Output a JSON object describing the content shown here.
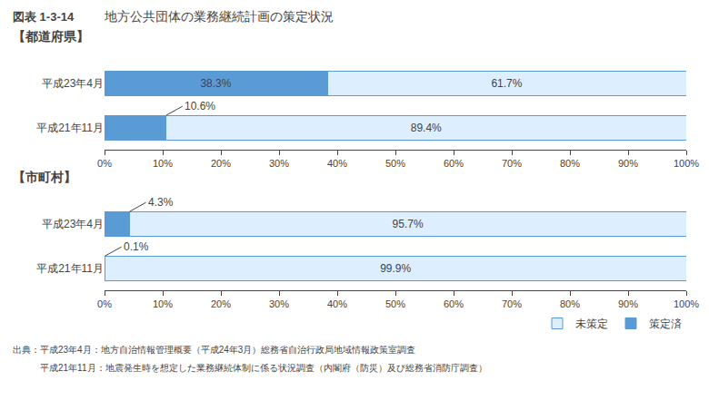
{
  "title": "地方公共団体の業務継続計画の策定状況",
  "subtitle": "図表 1-3-14",
  "annotations": [
    "出典：平成23年4月：地方自治情報管理概要（平成24年3月）総務省自治行政局地域情報政策室調査",
    "　　　平成21年11月：地震発生時を想定した業務継続体制に係る状況調査（内閣府（防災）及び総務省消防庁調査）"
  ],
  "chart_data": [
    {
      "type": "bar",
      "title": "【都道府県】",
      "orientation": "horizontal",
      "stacked": true,
      "categories": [
        "平成23年4月",
        "平成21年11月"
      ],
      "series": [
        {
          "name": "策定済",
          "color": "#5B9BD5",
          "values": [
            38.3,
            10.6
          ],
          "value_labels": [
            "38.3%",
            "10.6%"
          ]
        },
        {
          "name": "未策定",
          "color": "#DDEEFF",
          "values": [
            61.7,
            89.4
          ],
          "value_labels": [
            "61.7%",
            "89.4%"
          ]
        }
      ],
      "xlim": [
        0,
        100
      ],
      "xticks": [
        {
          "value": 0,
          "label": "0%"
        },
        {
          "value": 10,
          "label": "10%"
        },
        {
          "value": 20,
          "label": "20%"
        },
        {
          "value": 30,
          "label": "30%"
        },
        {
          "value": 40,
          "label": "40%"
        },
        {
          "value": 50,
          "label": "50%"
        },
        {
          "value": 60,
          "label": "60%"
        },
        {
          "value": 70,
          "label": "70%"
        },
        {
          "value": 80,
          "label": "80%"
        },
        {
          "value": 90,
          "label": "90%"
        },
        {
          "value": 100,
          "label": "100%"
        }
      ],
      "grid": false,
      "data_labels": true
    },
    {
      "type": "bar",
      "title": "【市町村】",
      "orientation": "horizontal",
      "stacked": true,
      "categories": [
        "平成23年4月",
        "平成21年11月"
      ],
      "series": [
        {
          "name": "策定済",
          "color": "#5B9BD5",
          "values": [
            4.3,
            0.1
          ],
          "value_labels": [
            "4.3%",
            "0.1%"
          ]
        },
        {
          "name": "未策定",
          "color": "#DDEEFF",
          "values": [
            95.7,
            99.9
          ],
          "value_labels": [
            "95.7%",
            "99.9%"
          ]
        }
      ],
      "xlim": [
        0,
        100
      ],
      "xticks": [
        {
          "value": 0,
          "label": "0%"
        },
        {
          "value": 10,
          "label": "10%"
        },
        {
          "value": 20,
          "label": "20%"
        },
        {
          "value": 30,
          "label": "30%"
        },
        {
          "value": 40,
          "label": "40%"
        },
        {
          "value": 50,
          "label": "50%"
        },
        {
          "value": 60,
          "label": "60%"
        },
        {
          "value": 70,
          "label": "70%"
        },
        {
          "value": 80,
          "label": "80%"
        },
        {
          "value": 90,
          "label": "90%"
        },
        {
          "value": 100,
          "label": "100%"
        }
      ],
      "grid": false,
      "data_labels": true,
      "legend": "lower right"
    }
  ]
}
